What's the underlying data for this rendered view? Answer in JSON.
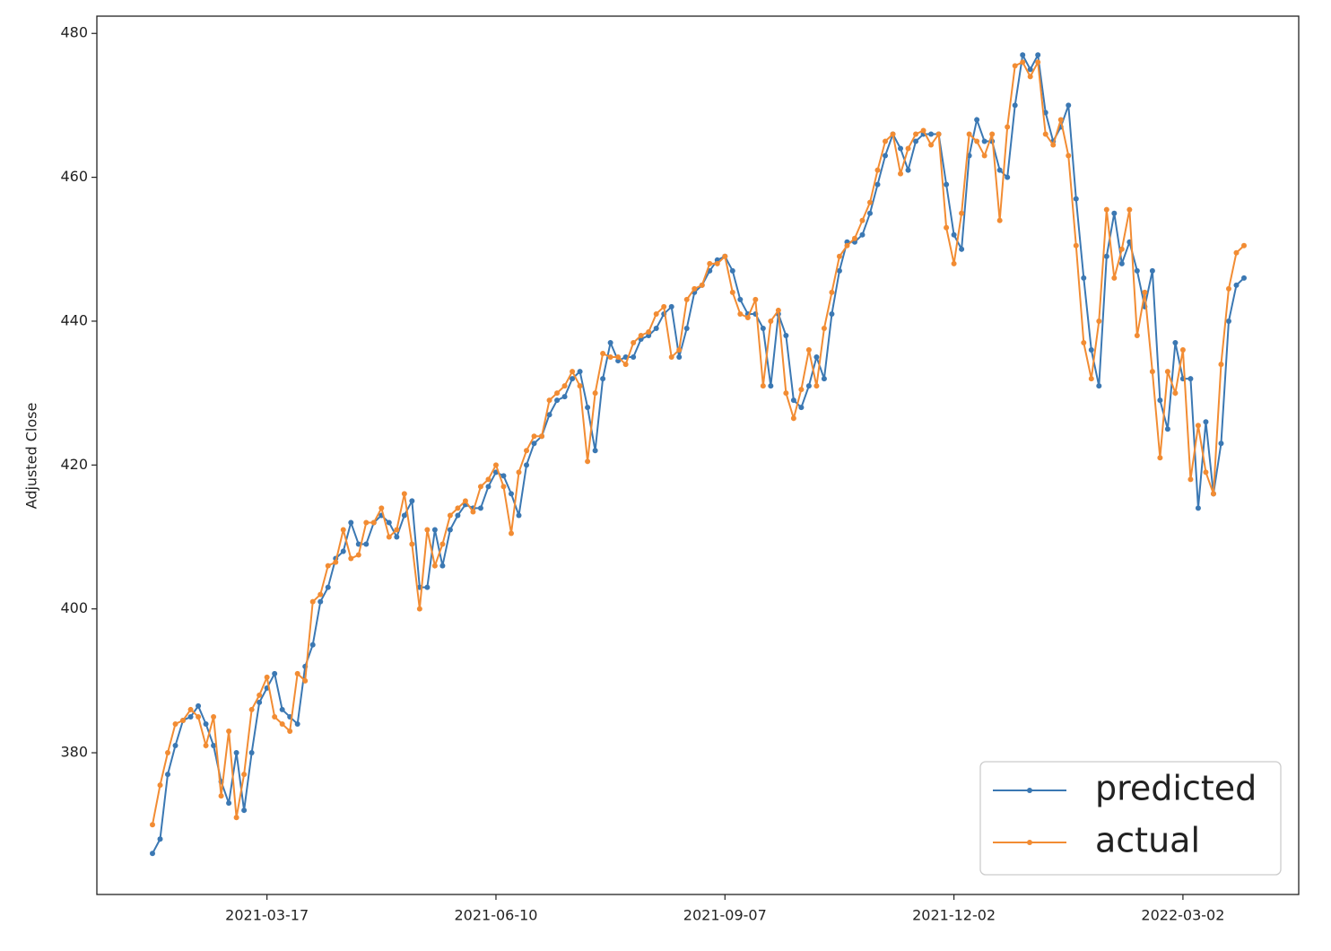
{
  "chart_data": {
    "type": "line",
    "y_label": "Adjusted Close",
    "categories": [
      null,
      null,
      null,
      null,
      null,
      null,
      null,
      null,
      null,
      null,
      null,
      null,
      null,
      null,
      null,
      "2021-03-17",
      null,
      null,
      null,
      null,
      null,
      null,
      null,
      null,
      null,
      null,
      null,
      null,
      null,
      null,
      null,
      null,
      null,
      null,
      null,
      null,
      null,
      null,
      null,
      null,
      null,
      null,
      null,
      null,
      null,
      "2021-06-10",
      null,
      null,
      null,
      null,
      null,
      null,
      null,
      null,
      null,
      null,
      null,
      null,
      null,
      null,
      null,
      null,
      null,
      null,
      null,
      null,
      null,
      null,
      null,
      null,
      null,
      null,
      null,
      null,
      null,
      "2021-09-07",
      null,
      null,
      null,
      null,
      null,
      null,
      null,
      null,
      null,
      null,
      null,
      null,
      null,
      null,
      null,
      null,
      null,
      null,
      null,
      null,
      null,
      null,
      null,
      null,
      null,
      null,
      null,
      null,
      null,
      "2021-12-02",
      null,
      null,
      null,
      null,
      null,
      null,
      null,
      null,
      null,
      null,
      null,
      null,
      null,
      null,
      null,
      null,
      null,
      null,
      null,
      null,
      null,
      null,
      null,
      null,
      null,
      null,
      null,
      null,
      null,
      "2022-03-02",
      null,
      null,
      null,
      null,
      null,
      null,
      null,
      null
    ],
    "series": [
      {
        "name": "predicted",
        "color": "#3b78b3",
        "values": [
          366,
          368,
          377,
          381,
          384.5,
          385,
          386.5,
          384,
          381,
          376,
          373,
          380,
          372,
          380,
          387,
          389,
          391,
          386,
          385,
          384,
          392,
          395,
          401,
          403,
          407,
          408,
          412,
          409,
          409,
          412,
          413,
          412,
          410,
          413,
          415,
          403,
          403,
          411,
          406,
          411,
          413,
          414.5,
          414,
          414,
          417,
          419,
          418.5,
          416,
          413,
          420,
          423,
          424,
          427,
          429,
          429.5,
          432,
          433,
          428,
          422,
          432,
          437,
          434.5,
          435,
          435,
          437.5,
          438,
          439,
          441,
          442,
          435,
          439,
          444,
          445,
          447,
          448.5,
          449,
          447,
          443,
          441,
          441,
          439,
          431,
          441,
          438,
          429,
          428,
          431,
          435,
          432,
          441,
          447,
          451,
          451,
          452,
          455,
          459,
          463,
          466,
          464,
          461,
          465,
          466,
          466,
          466,
          459,
          452,
          450,
          463,
          468,
          465,
          465,
          461,
          460,
          470,
          477,
          475,
          477,
          469,
          465,
          467,
          470,
          457,
          446,
          436,
          431,
          449,
          455,
          448,
          451,
          447,
          442,
          447,
          429,
          425,
          437,
          432,
          432,
          414,
          426,
          416,
          423,
          440,
          445,
          446
        ]
      },
      {
        "name": "actual",
        "color": "#f28c33",
        "values": [
          370,
          375.5,
          380,
          384,
          384.5,
          386,
          385,
          381,
          385,
          374,
          383,
          371,
          377,
          386,
          388,
          390.5,
          385,
          384,
          383,
          391,
          390,
          401,
          402,
          406,
          406.5,
          411,
          407,
          407.5,
          412,
          412,
          414,
          410,
          411,
          416,
          409,
          400,
          411,
          406,
          409,
          413,
          414,
          415,
          413.5,
          417,
          418,
          420,
          417,
          410.5,
          419,
          422,
          424,
          424,
          429,
          430,
          431,
          433,
          431,
          420.5,
          430,
          435.5,
          435,
          435,
          434,
          437,
          438,
          438.5,
          441,
          442,
          435,
          436,
          443,
          444.5,
          445,
          448,
          448,
          449,
          444,
          441,
          440.5,
          443,
          431,
          440,
          441.5,
          430,
          426.5,
          430.5,
          436,
          431,
          439,
          444,
          449,
          450.5,
          451.5,
          454,
          456.5,
          461,
          465,
          466,
          460.5,
          464,
          466,
          466.5,
          464.5,
          466,
          453,
          448,
          455,
          466,
          465,
          463,
          466,
          454,
          467,
          475.5,
          476,
          474,
          476,
          466,
          464.5,
          468,
          463,
          450.5,
          437,
          432,
          440,
          455.5,
          446,
          450,
          455.5,
          438,
          444,
          433,
          421,
          433,
          430,
          436,
          418,
          425.5,
          419,
          416,
          434,
          444.5,
          449.5,
          450.5
        ]
      }
    ],
    "ylim": [
      360.3,
      482.4
    ],
    "yticks": [
      380,
      400,
      420,
      440,
      460,
      480
    ],
    "grid": false,
    "legend": "lower right"
  }
}
